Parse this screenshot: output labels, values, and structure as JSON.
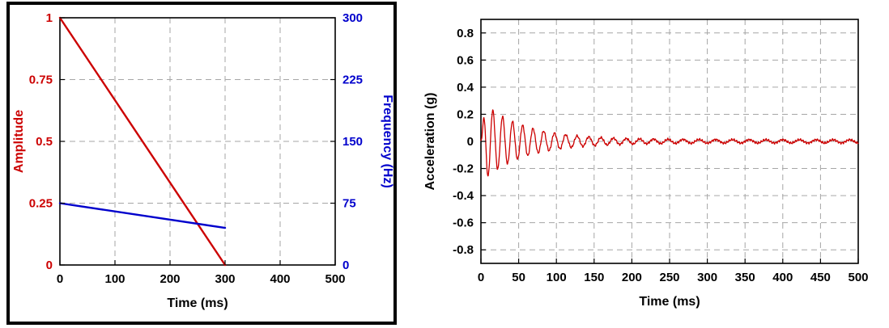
{
  "figure": {
    "description": "Sine sweep input (amplitude and frequency vs time) and measured acceleration response"
  },
  "chart_data": [
    {
      "id": "sweep-parameters",
      "type": "line",
      "title": "",
      "xlabel": "Time (ms)",
      "ylabel": "Amplitude",
      "ylabel_right": "Frequency (Hz)",
      "xlim": [
        0,
        500
      ],
      "ylim_left": [
        0,
        1
      ],
      "ylim_right": [
        0,
        300
      ],
      "x_ticks": [
        0,
        100,
        200,
        300,
        400,
        500
      ],
      "y_ticks_left": [
        0,
        0.25,
        0.5,
        0.75,
        1
      ],
      "y_ticks_right": [
        0,
        75,
        150,
        225,
        300
      ],
      "grid": "dashed",
      "legend": "none",
      "colors": {
        "left_axis": "#cc0000",
        "right_axis": "#0000cc",
        "x_axis": "#000000"
      },
      "series": [
        {
          "name": "Amplitude",
          "axis": "left",
          "color": "#cc0000",
          "points": [
            [
              0,
              1
            ],
            [
              300,
              0
            ]
          ]
        },
        {
          "name": "Frequency",
          "axis": "right",
          "color": "#0000cc",
          "points": [
            [
              0,
              75
            ],
            [
              300,
              45
            ]
          ]
        }
      ]
    },
    {
      "id": "acceleration-response",
      "type": "line",
      "title": "",
      "xlabel": "Time (ms)",
      "ylabel": "Acceleration (g)",
      "xlim": [
        0,
        500
      ],
      "ylim": [
        -0.9,
        0.9
      ],
      "x_ticks": [
        0,
        50,
        100,
        150,
        200,
        250,
        300,
        350,
        400,
        450,
        500
      ],
      "y_ticks": [
        -0.8,
        -0.6,
        -0.4,
        -0.2,
        0,
        0.2,
        0.4,
        0.6,
        0.8
      ],
      "grid": "dashed",
      "legend": "none",
      "colors": {
        "left_axis": "#000000",
        "x_axis": "#000000"
      },
      "series": [
        {
          "name": "Acceleration",
          "axis": "left",
          "color": "#cc0000",
          "signal": {
            "kind": "swept_decaying_oscillation",
            "t_start_ms": 0,
            "t_end_ms": 500,
            "dt_ms": 0.4,
            "onset_ms": 6,
            "peak_amplitude_g": 0.29,
            "decay_tau_ms": 55,
            "residual_amplitude_g": 0.012,
            "freq_start_hz": 80,
            "freq_end_hz": 45,
            "sweep_duration_ms": 300,
            "noise_amplitude_g": 0.009,
            "peak_positive_g": 0.27,
            "peak_negative_g": -0.3
          }
        }
      ]
    }
  ]
}
